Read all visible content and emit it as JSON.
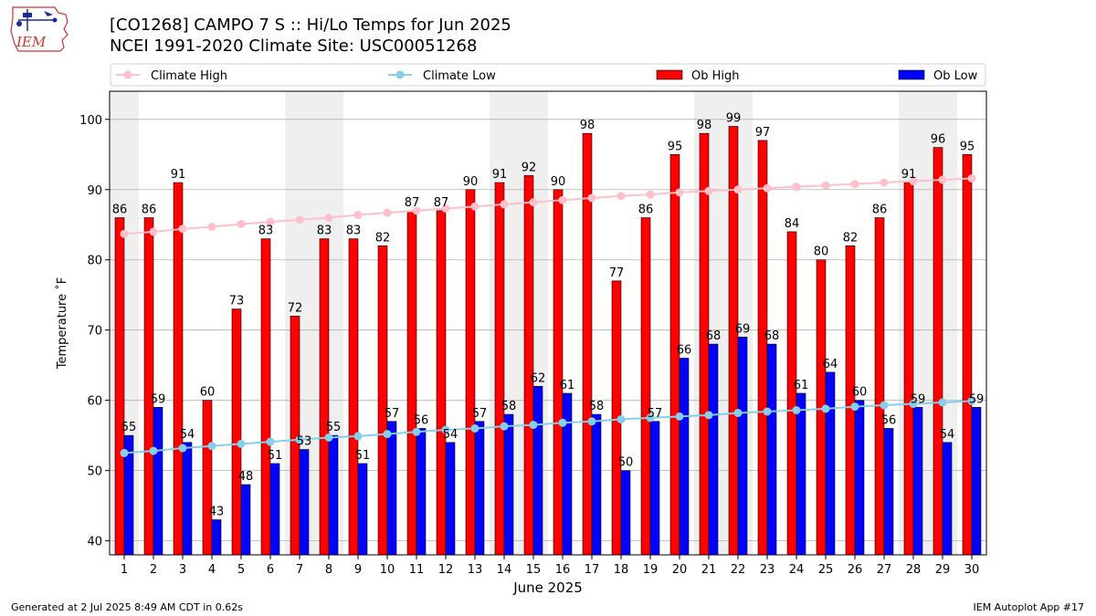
{
  "header": {
    "title": "[CO1268] CAMPO 7 S :: Hi/Lo Temps for Jun 2025",
    "subtitle": "NCEI 1991-2020 Climate Site: USC00051268",
    "logo_text": "IEM"
  },
  "footer": {
    "generated": "Generated at 2 Jul 2025 8:49 AM CDT in 0.62s",
    "app": "IEM Autoplot App #17"
  },
  "colors": {
    "ob_high": "#ff0000",
    "ob_low": "#0000ff",
    "climate_high": "#ffc0cb",
    "climate_low": "#87ceeb",
    "weekend_shade": "#efefef",
    "grid": "#b0b0b0"
  },
  "chart_data": {
    "type": "bar",
    "xlabel": "June 2025",
    "ylabel": "Temperature ˚F",
    "ylim": [
      38,
      104
    ],
    "yticks": [
      40,
      50,
      60,
      70,
      80,
      90,
      100
    ],
    "grid": "horizontal",
    "legend_position": "top",
    "categories": [
      "1",
      "2",
      "3",
      "4",
      "5",
      "6",
      "7",
      "8",
      "9",
      "10",
      "11",
      "12",
      "13",
      "14",
      "15",
      "16",
      "17",
      "18",
      "19",
      "20",
      "21",
      "22",
      "23",
      "24",
      "25",
      "26",
      "27",
      "28",
      "29",
      "30"
    ],
    "shaded_days": [
      1,
      7,
      8,
      14,
      15,
      21,
      22,
      28,
      29
    ],
    "series": [
      {
        "name": "Ob High",
        "kind": "bar",
        "values": [
          86,
          86,
          91,
          60,
          73,
          83,
          72,
          83,
          83,
          82,
          87,
          87,
          90,
          91,
          92,
          90,
          98,
          77,
          86,
          95,
          98,
          99,
          97,
          84,
          80,
          82,
          86,
          91,
          96,
          95
        ]
      },
      {
        "name": "Ob Low",
        "kind": "bar",
        "values": [
          55,
          59,
          54,
          43,
          48,
          51,
          53,
          55,
          51,
          57,
          56,
          54,
          57,
          58,
          62,
          61,
          58,
          50,
          57,
          66,
          68,
          69,
          68,
          61,
          64,
          60,
          56,
          59,
          54,
          59
        ]
      },
      {
        "name": "Climate High",
        "kind": "line",
        "values": [
          83.7,
          84.0,
          84.4,
          84.7,
          85.1,
          85.4,
          85.7,
          86.0,
          86.4,
          86.7,
          87.0,
          87.3,
          87.6,
          87.9,
          88.2,
          88.5,
          88.8,
          89.1,
          89.3,
          89.6,
          89.8,
          90.0,
          90.2,
          90.4,
          90.6,
          90.8,
          91.0,
          91.2,
          91.4,
          91.6
        ]
      },
      {
        "name": "Climate Low",
        "kind": "line",
        "values": [
          52.5,
          52.8,
          53.2,
          53.5,
          53.8,
          54.1,
          54.4,
          54.7,
          54.9,
          55.2,
          55.5,
          55.8,
          56.0,
          56.3,
          56.5,
          56.8,
          57.0,
          57.3,
          57.5,
          57.7,
          57.9,
          58.2,
          58.4,
          58.6,
          58.8,
          59.1,
          59.3,
          59.5,
          59.7,
          59.9
        ]
      }
    ]
  }
}
